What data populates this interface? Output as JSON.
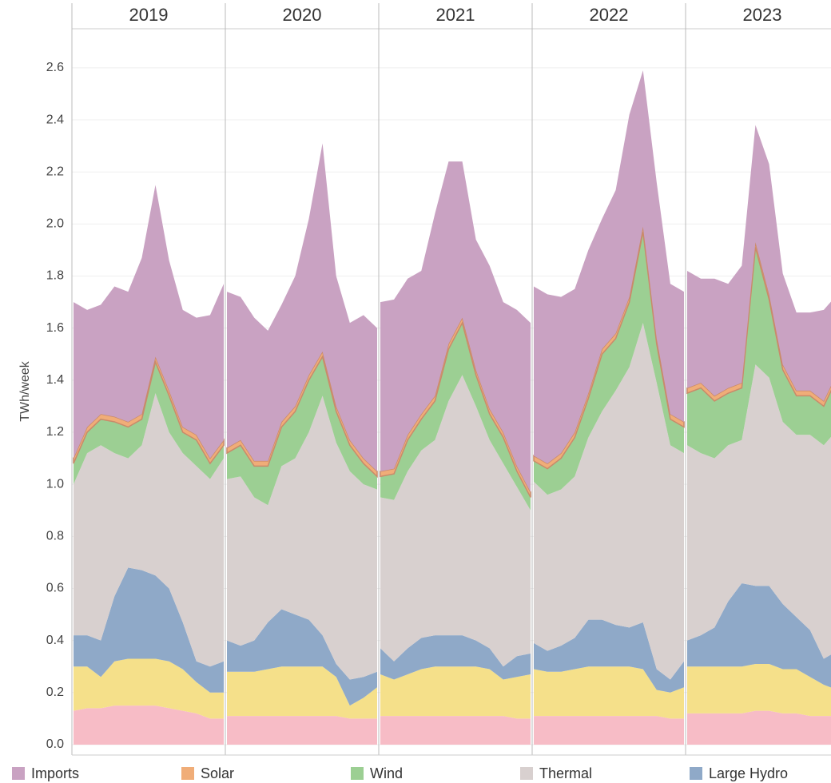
{
  "chart_data": {
    "type": "stacked_area",
    "y_label": "TWh/week",
    "categories": [
      "2019",
      "2020",
      "2021",
      "2022",
      "2023"
    ],
    "ylim": [
      -0.04,
      2.75
    ],
    "yticks": [
      {
        "value": 0,
        "label": "0.0"
      },
      0.2,
      0.4,
      0.6,
      0.8,
      {
        "value": 1,
        "label": "1.0"
      },
      1.2,
      1.4,
      1.6,
      1.8,
      {
        "value": 2,
        "label": "2.0"
      },
      2.2,
      2.4,
      2.6
    ],
    "grid": true,
    "series": [
      {
        "color": "#f7bcc6",
        "values": [
          [
            0.13,
            0.14,
            0.14,
            0.15,
            0.15,
            0.15,
            0.15,
            0.14,
            0.13,
            0.12,
            0.1,
            0.1
          ],
          [
            0.11,
            0.11,
            0.11,
            0.11,
            0.11,
            0.11,
            0.11,
            0.11,
            0.11,
            0.1,
            0.1,
            0.1
          ],
          [
            0.11,
            0.11,
            0.11,
            0.11,
            0.11,
            0.11,
            0.11,
            0.11,
            0.11,
            0.11,
            0.1,
            0.1
          ],
          [
            0.11,
            0.11,
            0.11,
            0.11,
            0.11,
            0.11,
            0.11,
            0.11,
            0.11,
            0.11,
            0.1,
            0.1
          ],
          [
            0.12,
            0.12,
            0.12,
            0.12,
            0.12,
            0.13,
            0.13,
            0.12,
            0.12,
            0.11,
            0.11,
            0.11
          ]
        ]
      },
      {
        "color": "#f5e08a",
        "values": [
          [
            0.17,
            0.16,
            0.12,
            0.17,
            0.18,
            0.18,
            0.18,
            0.18,
            0.16,
            0.12,
            0.1,
            0.1
          ],
          [
            0.17,
            0.17,
            0.17,
            0.18,
            0.19,
            0.19,
            0.19,
            0.19,
            0.15,
            0.05,
            0.08,
            0.12
          ],
          [
            0.16,
            0.14,
            0.16,
            0.18,
            0.19,
            0.19,
            0.19,
            0.19,
            0.18,
            0.14,
            0.16,
            0.17
          ],
          [
            0.18,
            0.17,
            0.17,
            0.18,
            0.19,
            0.19,
            0.19,
            0.19,
            0.18,
            0.1,
            0.1,
            0.12
          ],
          [
            0.18,
            0.18,
            0.18,
            0.18,
            0.18,
            0.18,
            0.18,
            0.17,
            0.17,
            0.15,
            0.12,
            0.1
          ]
        ]
      },
      {
        "name": "Large Hydro",
        "color": "#8fa9c8",
        "values": [
          [
            0.12,
            0.12,
            0.14,
            0.25,
            0.35,
            0.34,
            0.32,
            0.28,
            0.18,
            0.08,
            0.1,
            0.12
          ],
          [
            0.12,
            0.1,
            0.12,
            0.18,
            0.22,
            0.2,
            0.18,
            0.12,
            0.05,
            0.1,
            0.08,
            0.06
          ],
          [
            0.1,
            0.07,
            0.1,
            0.12,
            0.12,
            0.12,
            0.12,
            0.1,
            0.08,
            0.05,
            0.08,
            0.08
          ],
          [
            0.1,
            0.08,
            0.1,
            0.12,
            0.18,
            0.18,
            0.16,
            0.15,
            0.18,
            0.08,
            0.05,
            0.1
          ],
          [
            0.1,
            0.12,
            0.15,
            0.25,
            0.32,
            0.3,
            0.3,
            0.25,
            0.2,
            0.18,
            0.1,
            0.15
          ]
        ]
      },
      {
        "name": "Thermal",
        "color": "#d8d0cf",
        "values": [
          [
            0.58,
            0.7,
            0.75,
            0.55,
            0.42,
            0.48,
            0.7,
            0.6,
            0.65,
            0.75,
            0.72,
            0.78
          ],
          [
            0.62,
            0.65,
            0.55,
            0.45,
            0.55,
            0.6,
            0.72,
            0.92,
            0.85,
            0.8,
            0.74,
            0.7
          ],
          [
            0.58,
            0.62,
            0.68,
            0.72,
            0.75,
            0.9,
            1.0,
            0.9,
            0.8,
            0.78,
            0.65,
            0.55
          ],
          [
            0.62,
            0.6,
            0.6,
            0.62,
            0.7,
            0.8,
            0.9,
            1.0,
            1.15,
            1.1,
            0.9,
            0.8
          ],
          [
            0.75,
            0.7,
            0.65,
            0.6,
            0.55,
            0.85,
            0.8,
            0.7,
            0.7,
            0.75,
            0.82,
            0.85
          ]
        ]
      },
      {
        "name": "Wind",
        "color": "#9ccf93",
        "values": [
          [
            0.08,
            0.08,
            0.1,
            0.12,
            0.12,
            0.1,
            0.12,
            0.14,
            0.08,
            0.1,
            0.06,
            0.05
          ],
          [
            0.1,
            0.12,
            0.12,
            0.15,
            0.15,
            0.18,
            0.2,
            0.15,
            0.12,
            0.1,
            0.08,
            0.05
          ],
          [
            0.08,
            0.1,
            0.12,
            0.12,
            0.15,
            0.2,
            0.2,
            0.12,
            0.1,
            0.1,
            0.06,
            0.05
          ],
          [
            0.08,
            0.1,
            0.12,
            0.15,
            0.15,
            0.22,
            0.2,
            0.25,
            0.35,
            0.15,
            0.1,
            0.1
          ],
          [
            0.2,
            0.25,
            0.22,
            0.2,
            0.2,
            0.45,
            0.3,
            0.2,
            0.15,
            0.15,
            0.15,
            0.2
          ]
        ]
      },
      {
        "name": "Solar",
        "color": "#f0ad78",
        "values": [
          [
            0.02,
            0.02,
            0.02,
            0.02,
            0.02,
            0.02,
            0.02,
            0.02,
            0.02,
            0.02,
            0.02,
            0.02
          ],
          [
            0.02,
            0.02,
            0.02,
            0.02,
            0.02,
            0.02,
            0.02,
            0.02,
            0.02,
            0.02,
            0.02,
            0.02
          ],
          [
            0.02,
            0.02,
            0.02,
            0.02,
            0.02,
            0.02,
            0.02,
            0.02,
            0.02,
            0.02,
            0.02,
            0.02
          ],
          [
            0.02,
            0.02,
            0.02,
            0.02,
            0.02,
            0.02,
            0.02,
            0.02,
            0.02,
            0.02,
            0.02,
            0.02
          ],
          [
            0.02,
            0.02,
            0.02,
            0.02,
            0.02,
            0.02,
            0.02,
            0.02,
            0.02,
            0.02,
            0.02,
            0.02
          ]
        ]
      },
      {
        "name": "Imports",
        "color": "#c9a2c2",
        "values": [
          [
            0.6,
            0.45,
            0.42,
            0.5,
            0.5,
            0.6,
            0.66,
            0.5,
            0.45,
            0.45,
            0.55,
            0.6
          ],
          [
            0.6,
            0.55,
            0.55,
            0.5,
            0.45,
            0.5,
            0.6,
            0.8,
            0.5,
            0.45,
            0.55,
            0.55
          ],
          [
            0.65,
            0.65,
            0.6,
            0.55,
            0.7,
            0.7,
            0.6,
            0.5,
            0.55,
            0.5,
            0.6,
            0.65
          ],
          [
            0.65,
            0.65,
            0.6,
            0.55,
            0.55,
            0.5,
            0.55,
            0.7,
            0.6,
            0.6,
            0.5,
            0.5
          ],
          [
            0.45,
            0.4,
            0.45,
            0.4,
            0.45,
            0.45,
            0.5,
            0.35,
            0.3,
            0.3,
            0.35,
            0.3
          ]
        ]
      }
    ]
  }
}
